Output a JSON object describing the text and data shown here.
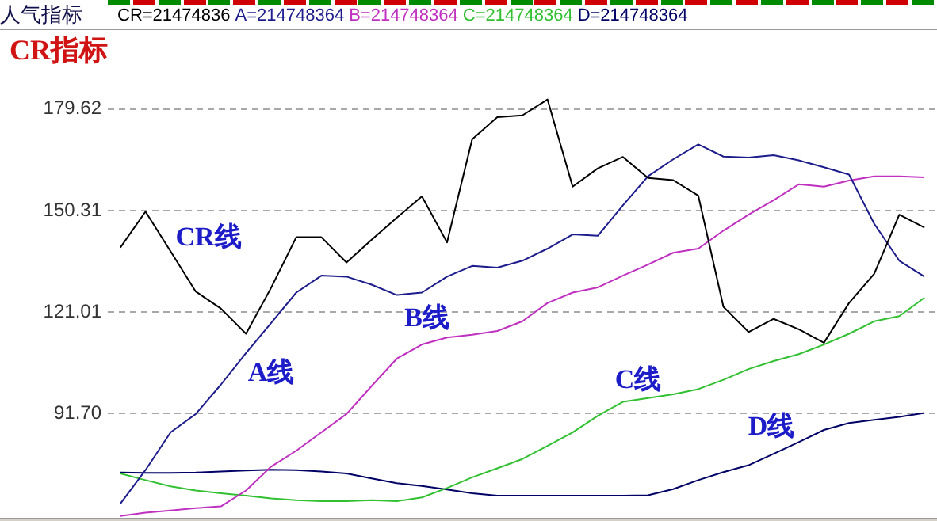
{
  "chart_data": {
    "type": "line",
    "title": "CR指标",
    "subtitle": "人气指标",
    "annotations": [
      "CR=21474836",
      "A=214748364",
      "B=214748364",
      "C=214748364",
      "D=214748364"
    ],
    "categories": [
      null,
      null,
      null,
      null,
      null,
      null,
      null,
      null,
      null,
      null,
      null,
      null,
      null,
      null,
      null,
      null,
      null,
      null,
      null,
      null,
      null,
      null,
      null,
      null,
      null,
      null,
      null,
      null,
      null,
      null,
      null,
      null,
      null
    ],
    "series": [
      {
        "name": "CR线",
        "color": "#000000",
        "values": [
          139.6,
          150.0,
          138.5,
          126.9,
          122.0,
          114.7,
          128.0,
          142.6,
          142.6,
          135.3,
          141.9,
          148.2,
          154.4,
          141.1,
          170.9,
          177.3,
          177.8,
          182.4,
          157.2,
          162.5,
          165.8,
          159.7,
          159.1,
          154.6,
          122.5,
          115.2,
          119.0,
          116.0,
          112.1,
          123.6,
          132.0,
          149.1,
          145.4
        ]
      },
      {
        "name": "A线",
        "color": "#1c1c8c",
        "values": [
          65.6,
          75.3,
          86.2,
          91.5,
          100.0,
          109.1,
          117.8,
          126.6,
          131.5,
          131.2,
          128.9,
          125.9,
          126.6,
          131.2,
          134.3,
          133.8,
          135.8,
          139.3,
          143.4,
          143.0,
          151.8,
          160.2,
          165.1,
          169.4,
          165.9,
          165.6,
          166.3,
          164.8,
          162.8,
          160.7,
          146.5,
          135.8,
          131.2
        ]
      },
      {
        "name": "B线",
        "color": "#c030c0",
        "values": [
          62.0,
          63.0,
          63.6,
          64.3,
          64.8,
          69.4,
          76.3,
          80.9,
          86.2,
          91.5,
          99.6,
          107.5,
          111.6,
          113.6,
          114.4,
          115.5,
          118.3,
          123.6,
          126.6,
          128.1,
          131.5,
          134.7,
          138.1,
          139.3,
          144.5,
          149.1,
          153.3,
          157.9,
          157.2,
          159.0,
          160.2,
          160.2,
          159.9
        ]
      },
      {
        "name": "C线",
        "color": "#30c030",
        "values": [
          74.3,
          72.4,
          70.6,
          69.4,
          68.6,
          67.9,
          67.1,
          66.6,
          66.3,
          66.3,
          66.6,
          66.3,
          67.4,
          70.1,
          73.2,
          75.8,
          78.5,
          82.3,
          86.2,
          91.0,
          95.0,
          96.1,
          97.2,
          98.7,
          101.4,
          104.5,
          106.8,
          108.8,
          111.6,
          114.7,
          118.3,
          119.8,
          125.1
        ]
      },
      {
        "name": "D线",
        "color": "#000066",
        "values": [
          74.6,
          74.5,
          74.5,
          74.6,
          74.9,
          75.2,
          75.4,
          75.3,
          74.9,
          74.3,
          72.9,
          71.5,
          70.7,
          69.7,
          68.6,
          67.9,
          67.9,
          67.9,
          67.9,
          67.9,
          67.9,
          68.0,
          69.8,
          72.4,
          74.7,
          76.7,
          80.0,
          83.4,
          86.9,
          88.9,
          89.8,
          90.7,
          91.8
        ]
      }
    ],
    "ylim": [
      61.5,
      202
    ],
    "yticks": [
      {
        "value": 91.7,
        "label": "91.70"
      },
      121.01,
      150.31,
      179.62
    ],
    "grid": "y",
    "tick_labels": "y",
    "marker": "none",
    "line_style": "solid"
  }
}
